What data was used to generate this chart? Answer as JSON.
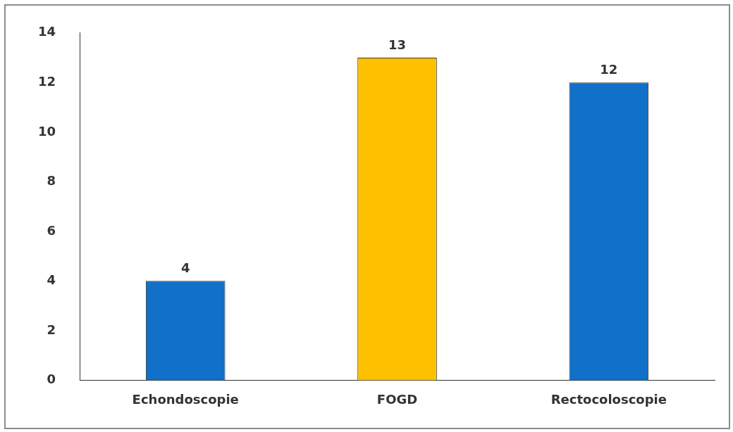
{
  "chart_data": {
    "type": "bar",
    "categories": [
      "Echondoscopie",
      "FOGD",
      "Rectocoloscopie"
    ],
    "values": [
      4,
      13,
      12
    ],
    "colors": [
      "#1170c8",
      "#ffc000",
      "#1170c8"
    ],
    "ylim": [
      0,
      14
    ],
    "yticks": [
      0,
      2,
      4,
      6,
      8,
      10,
      12,
      14
    ],
    "grid": false,
    "legend": false,
    "data_labels": true
  }
}
